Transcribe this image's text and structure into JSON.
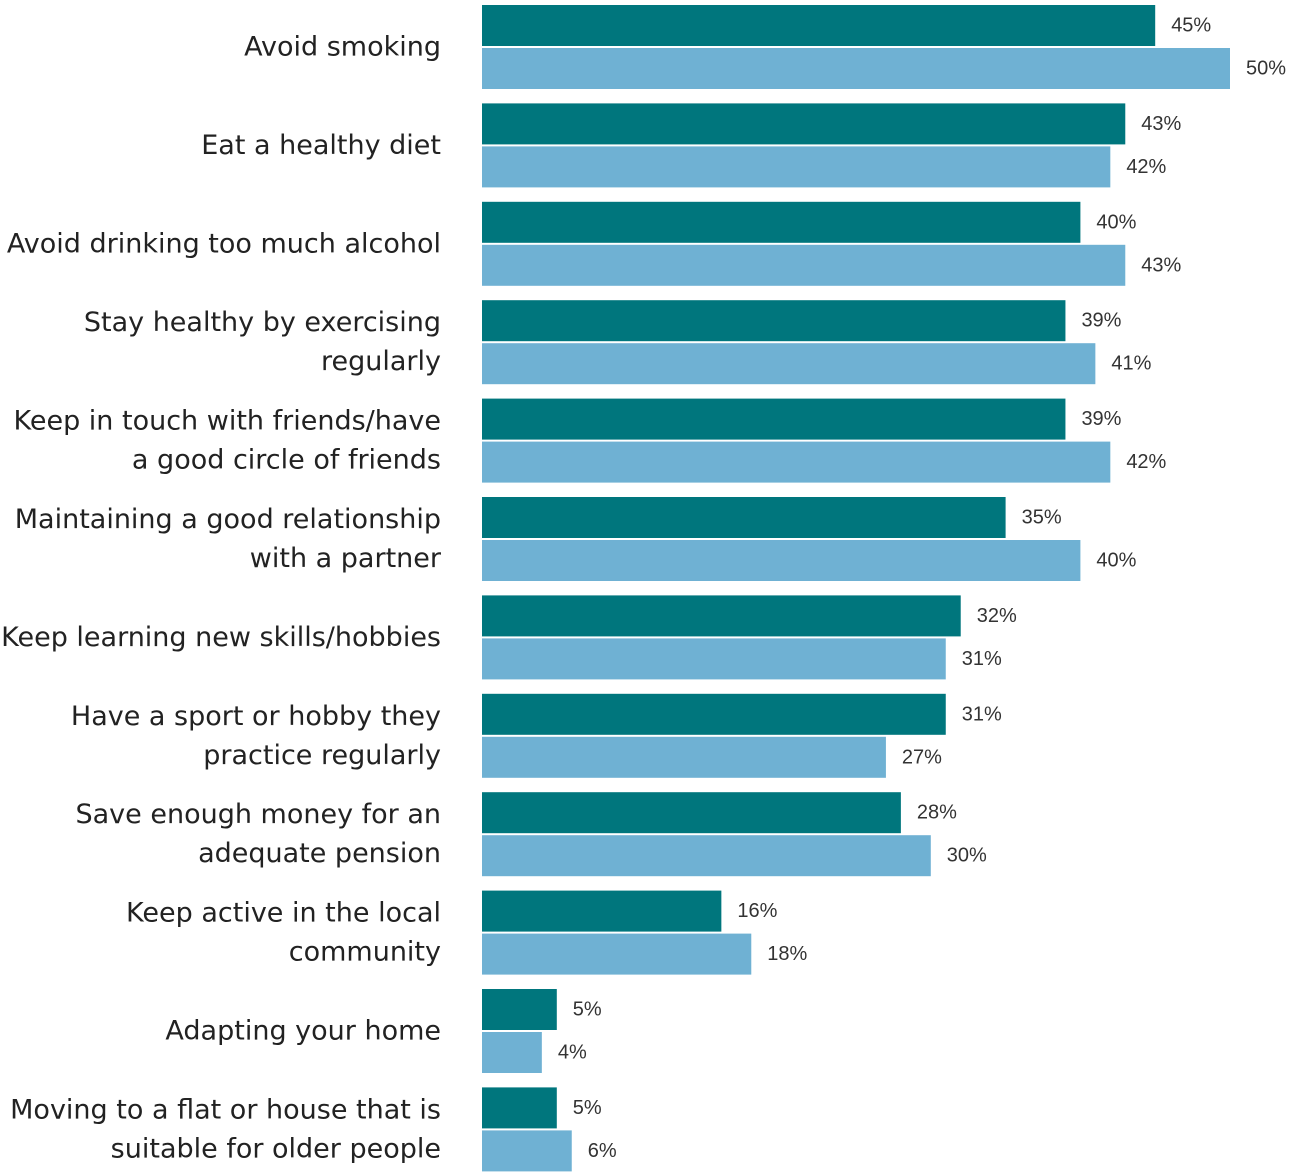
{
  "chart_data": {
    "type": "bar",
    "orientation": "horizontal",
    "categories": [
      [
        "Avoid smoking"
      ],
      [
        "Eat a healthy diet"
      ],
      [
        "Avoid drinking too much alcohol"
      ],
      [
        "Stay healthy by exercising",
        "regularly"
      ],
      [
        "Keep in touch with friends/have",
        "a good circle of friends"
      ],
      [
        "Maintaining a good relationship",
        "with a partner"
      ],
      [
        "Keep learning new skills/hobbies"
      ],
      [
        "Have a sport or hobby they",
        "practice regularly"
      ],
      [
        "Save enough money for an",
        "adequate pension"
      ],
      [
        "Keep active in the local",
        "community"
      ],
      [
        "Adapting your home"
      ],
      [
        "Moving to a flat or house that is",
        "suitable for older people"
      ]
    ],
    "series": [
      {
        "color": "#00767d",
        "values": [
          45,
          43,
          40,
          39,
          39,
          35,
          32,
          31,
          28,
          16,
          5,
          5
        ]
      },
      {
        "color": "#6fb1d3",
        "values": [
          50,
          42,
          43,
          41,
          42,
          40,
          31,
          27,
          30,
          18,
          4,
          6
        ]
      }
    ],
    "value_suffix": "%",
    "xlim": [
      0,
      50
    ],
    "grid": false,
    "legend": "none"
  }
}
